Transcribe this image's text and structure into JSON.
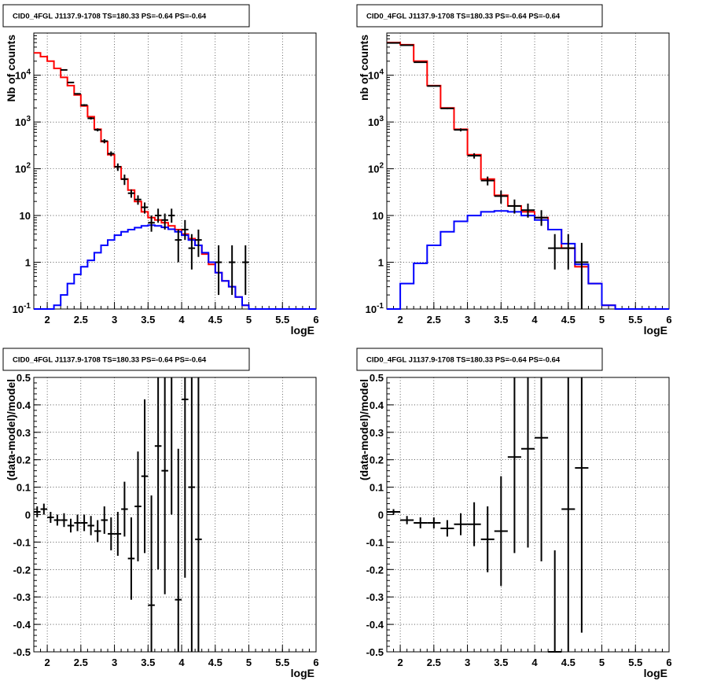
{
  "chart_data": [
    {
      "type": "line",
      "title": "CID0_4FGL J1137.9-1708 TS=180.33 PS=-0.64 PS=-0.64",
      "xlabel": "logE",
      "ylabel": "Nb of counts",
      "xlim": [
        1.8,
        6.0
      ],
      "ylim": [
        0.1,
        80000
      ],
      "yscale": "log",
      "grid": true,
      "x_ticks": [
        "2",
        "2.5",
        "3",
        "3.5",
        "4",
        "4.5",
        "5",
        "5.5",
        "6"
      ],
      "y_ticks": [
        "10^-1",
        "1",
        "10",
        "10^2",
        "10^3",
        "10^4"
      ],
      "bin_width": 0.1,
      "series": [
        {
          "color": "#ff0000",
          "style": "hist",
          "x": [
            1.8,
            1.9,
            2.0,
            2.1,
            2.2,
            2.3,
            2.4,
            2.5,
            2.6,
            2.7,
            2.8,
            2.9,
            3.0,
            3.1,
            3.2,
            3.3,
            3.4,
            3.5,
            3.6,
            3.7,
            3.8,
            3.9,
            4.0,
            4.1,
            4.2,
            4.3,
            4.4,
            4.5,
            4.6,
            4.7,
            4.8,
            4.9,
            5.0,
            5.1,
            5.2,
            5.3,
            5.4,
            5.5,
            5.6,
            5.7,
            5.8,
            5.9
          ],
          "values": [
            30000,
            25000,
            20000,
            14000,
            9000,
            6000,
            3800,
            2200,
            1300,
            700,
            380,
            200,
            110,
            60,
            35,
            20,
            12,
            9,
            8,
            7,
            6,
            5,
            4,
            3.2,
            2.3,
            1.5,
            0.9,
            0.6,
            0.4,
            0.3,
            0.18,
            0.12,
            0.1,
            0.1,
            0.1,
            0.1,
            0.1,
            0.1,
            0.1,
            0.1,
            0.1,
            0.1
          ]
        },
        {
          "color": "#0000ff",
          "style": "hist",
          "x": [
            1.8,
            1.9,
            2.0,
            2.1,
            2.2,
            2.3,
            2.4,
            2.5,
            2.6,
            2.7,
            2.8,
            2.9,
            3.0,
            3.1,
            3.2,
            3.3,
            3.4,
            3.5,
            3.6,
            3.7,
            3.8,
            3.9,
            4.0,
            4.1,
            4.2,
            4.3,
            4.4,
            4.5,
            4.6,
            4.7,
            4.8,
            4.9,
            5.0,
            5.1,
            5.2,
            5.3,
            5.4,
            5.5,
            5.6,
            5.7,
            5.8,
            5.9
          ],
          "values": [
            0.1,
            0.1,
            0.1,
            0.12,
            0.2,
            0.35,
            0.55,
            0.8,
            1.1,
            1.6,
            2.3,
            3.0,
            3.8,
            4.5,
            5.0,
            5.5,
            6.0,
            6.2,
            6.0,
            5.6,
            5.1,
            4.5,
            3.8,
            3.0,
            2.3,
            1.6,
            1.0,
            0.6,
            0.4,
            0.3,
            0.18,
            0.12,
            0.1,
            0.1,
            0.1,
            0.1,
            0.1,
            0.1,
            0.1,
            0.1,
            0.1,
            0.1
          ]
        },
        {
          "color": "#000000",
          "style": "points",
          "x": [
            2.25,
            2.35,
            2.45,
            2.55,
            2.65,
            2.75,
            2.85,
            2.95,
            3.05,
            3.15,
            3.25,
            3.35,
            3.45,
            3.55,
            3.65,
            3.75,
            3.85,
            3.95,
            4.05,
            4.15,
            4.25,
            4.55,
            4.75,
            4.95
          ],
          "values": [
            13000,
            7000,
            4000,
            2300,
            1200,
            680,
            390,
            210,
            110,
            60,
            30,
            22,
            15,
            7,
            10,
            8,
            10,
            3,
            5,
            2,
            3,
            1,
            1,
            1
          ],
          "err_lo": [
            300,
            200,
            150,
            100,
            70,
            50,
            40,
            25,
            20,
            15,
            6,
            5,
            4,
            2.5,
            3,
            3,
            3,
            2,
            2,
            1.3,
            1.7,
            0.8,
            0.8,
            0.8
          ],
          "err_hi": [
            300,
            200,
            150,
            100,
            70,
            50,
            40,
            25,
            20,
            15,
            6,
            5,
            4,
            3,
            4,
            3,
            4,
            2,
            3,
            2,
            2,
            1.3,
            1.3,
            1.3
          ]
        }
      ]
    },
    {
      "type": "line",
      "title": "CID0_4FGL J1137.9-1708 TS=180.33 PS=-0.64 PS=-0.64",
      "xlabel": "logE",
      "ylabel": "nb of counts",
      "xlim": [
        1.8,
        6.0
      ],
      "ylim": [
        0.1,
        80000
      ],
      "yscale": "log",
      "grid": true,
      "x_ticks": [
        "2",
        "2.5",
        "3",
        "3.5",
        "4",
        "4.5",
        "5",
        "5.5",
        "6"
      ],
      "y_ticks": [
        "10^-1",
        "1",
        "10",
        "10^2",
        "10^3",
        "10^4"
      ],
      "bin_width": 0.2,
      "series": [
        {
          "color": "#ff0000",
          "style": "hist",
          "x": [
            1.8,
            2.0,
            2.2,
            2.4,
            2.6,
            2.8,
            3.0,
            3.2,
            3.4,
            3.6,
            3.8,
            4.0,
            4.2,
            4.4,
            4.6,
            4.8,
            5.0,
            5.2,
            5.4,
            5.6,
            5.8
          ],
          "values": [
            50000,
            45000,
            20000,
            6000,
            2000,
            700,
            200,
            60,
            27,
            16,
            12,
            9,
            5,
            2,
            0.8,
            0.35,
            0.12,
            0.1,
            0.1,
            0.1,
            0.1
          ]
        },
        {
          "color": "#0000ff",
          "style": "hist",
          "x": [
            1.8,
            2.0,
            2.2,
            2.4,
            2.6,
            2.8,
            3.0,
            3.2,
            3.4,
            3.6,
            3.8,
            4.0,
            4.2,
            4.4,
            4.6,
            4.8,
            5.0,
            5.2,
            5.4,
            5.6,
            5.8
          ],
          "values": [
            0.1,
            0.35,
            0.95,
            2.3,
            4.5,
            7.5,
            10,
            12,
            12.5,
            12,
            10,
            8,
            5,
            2.5,
            0.9,
            0.35,
            0.12,
            0.1,
            0.1,
            0.1,
            0.1
          ]
        },
        {
          "color": "#000000",
          "style": "points",
          "x": [
            1.9,
            2.1,
            2.3,
            2.5,
            2.7,
            2.9,
            3.1,
            3.3,
            3.5,
            3.7,
            3.9,
            4.1,
            4.3,
            4.5,
            4.7
          ],
          "values": [
            49000,
            44000,
            19000,
            5900,
            1950,
            680,
            190,
            56,
            26,
            16,
            13,
            9,
            2,
            2,
            1
          ],
          "err_lo": [
            400,
            300,
            250,
            150,
            80,
            50,
            25,
            12,
            8,
            5,
            4,
            3,
            1.3,
            1.3,
            0.9
          ],
          "err_hi": [
            400,
            300,
            250,
            150,
            80,
            50,
            25,
            12,
            8,
            6,
            5,
            4,
            2,
            2,
            1.6
          ]
        }
      ]
    },
    {
      "type": "scatter",
      "title": "CID0_4FGL J1137.9-1708 TS=180.33 PS=-0.64 PS=-0.64",
      "xlabel": "logE",
      "ylabel": "(data-model)/model",
      "xlim": [
        1.8,
        6.0
      ],
      "ylim": [
        -0.5,
        0.5
      ],
      "grid": true,
      "x_ticks": [
        "2",
        "2.5",
        "3",
        "3.5",
        "4",
        "4.5",
        "5",
        "5.5",
        "6"
      ],
      "y_ticks": [
        "-0.5",
        "-0.4",
        "-0.3",
        "-0.2",
        "-0.1",
        "0",
        "0.1",
        "0.2",
        "0.3",
        "0.4",
        "0.5"
      ],
      "bin_half_width": 0.05,
      "series": [
        {
          "color": "#000000",
          "x": [
            1.85,
            1.95,
            2.05,
            2.15,
            2.25,
            2.35,
            2.45,
            2.55,
            2.65,
            2.75,
            2.85,
            2.95,
            3.05,
            3.15,
            3.25,
            3.35,
            3.45,
            3.55,
            3.65,
            3.75,
            3.85,
            3.95,
            4.05,
            4.15,
            4.25
          ],
          "values": [
            0.01,
            0.02,
            -0.01,
            -0.02,
            -0.02,
            -0.04,
            -0.03,
            -0.03,
            -0.04,
            -0.06,
            -0.02,
            -0.07,
            -0.07,
            0.02,
            -0.16,
            0.03,
            0.14,
            -0.33,
            0.25,
            0.16,
            0.55,
            -0.31,
            0.42,
            0.1,
            -0.09
          ],
          "err": [
            0.02,
            0.02,
            0.02,
            0.02,
            0.025,
            0.025,
            0.03,
            0.03,
            0.035,
            0.04,
            0.05,
            0.06,
            0.08,
            0.1,
            0.15,
            0.2,
            0.28,
            0.4,
            0.45,
            0.45,
            0.55,
            0.55,
            0.65,
            0.7,
            0.7
          ]
        }
      ]
    },
    {
      "type": "scatter",
      "title": "CID0_4FGL J1137.9-1708 TS=180.33 PS=-0.64 PS=-0.64",
      "xlabel": "logE",
      "ylabel": "(data-model)/model",
      "xlim": [
        1.8,
        6.0
      ],
      "ylim": [
        -0.5,
        0.5
      ],
      "grid": true,
      "x_ticks": [
        "2",
        "2.5",
        "3",
        "3.5",
        "4",
        "4.5",
        "5",
        "5.5",
        "6"
      ],
      "y_ticks": [
        "-0.5",
        "-0.4",
        "-0.3",
        "-0.2",
        "-0.1",
        "0",
        "0.1",
        "0.2",
        "0.3",
        "0.4",
        "0.5"
      ],
      "bin_half_width": 0.1,
      "series": [
        {
          "color": "#000000",
          "x": [
            1.9,
            2.1,
            2.3,
            2.5,
            2.7,
            2.9,
            3.1,
            3.3,
            3.5,
            3.7,
            3.9,
            4.1,
            4.3,
            4.5,
            4.7
          ],
          "values": [
            0.01,
            -0.02,
            -0.03,
            -0.03,
            -0.05,
            -0.035,
            -0.035,
            -0.09,
            -0.06,
            0.21,
            0.24,
            0.28,
            -0.5,
            0.02,
            0.17
          ],
          "err": [
            0.01,
            0.015,
            0.02,
            0.02,
            0.03,
            0.04,
            0.08,
            0.12,
            0.2,
            0.35,
            0.36,
            0.45,
            0.37,
            0.6,
            0.6
          ]
        }
      ]
    }
  ]
}
